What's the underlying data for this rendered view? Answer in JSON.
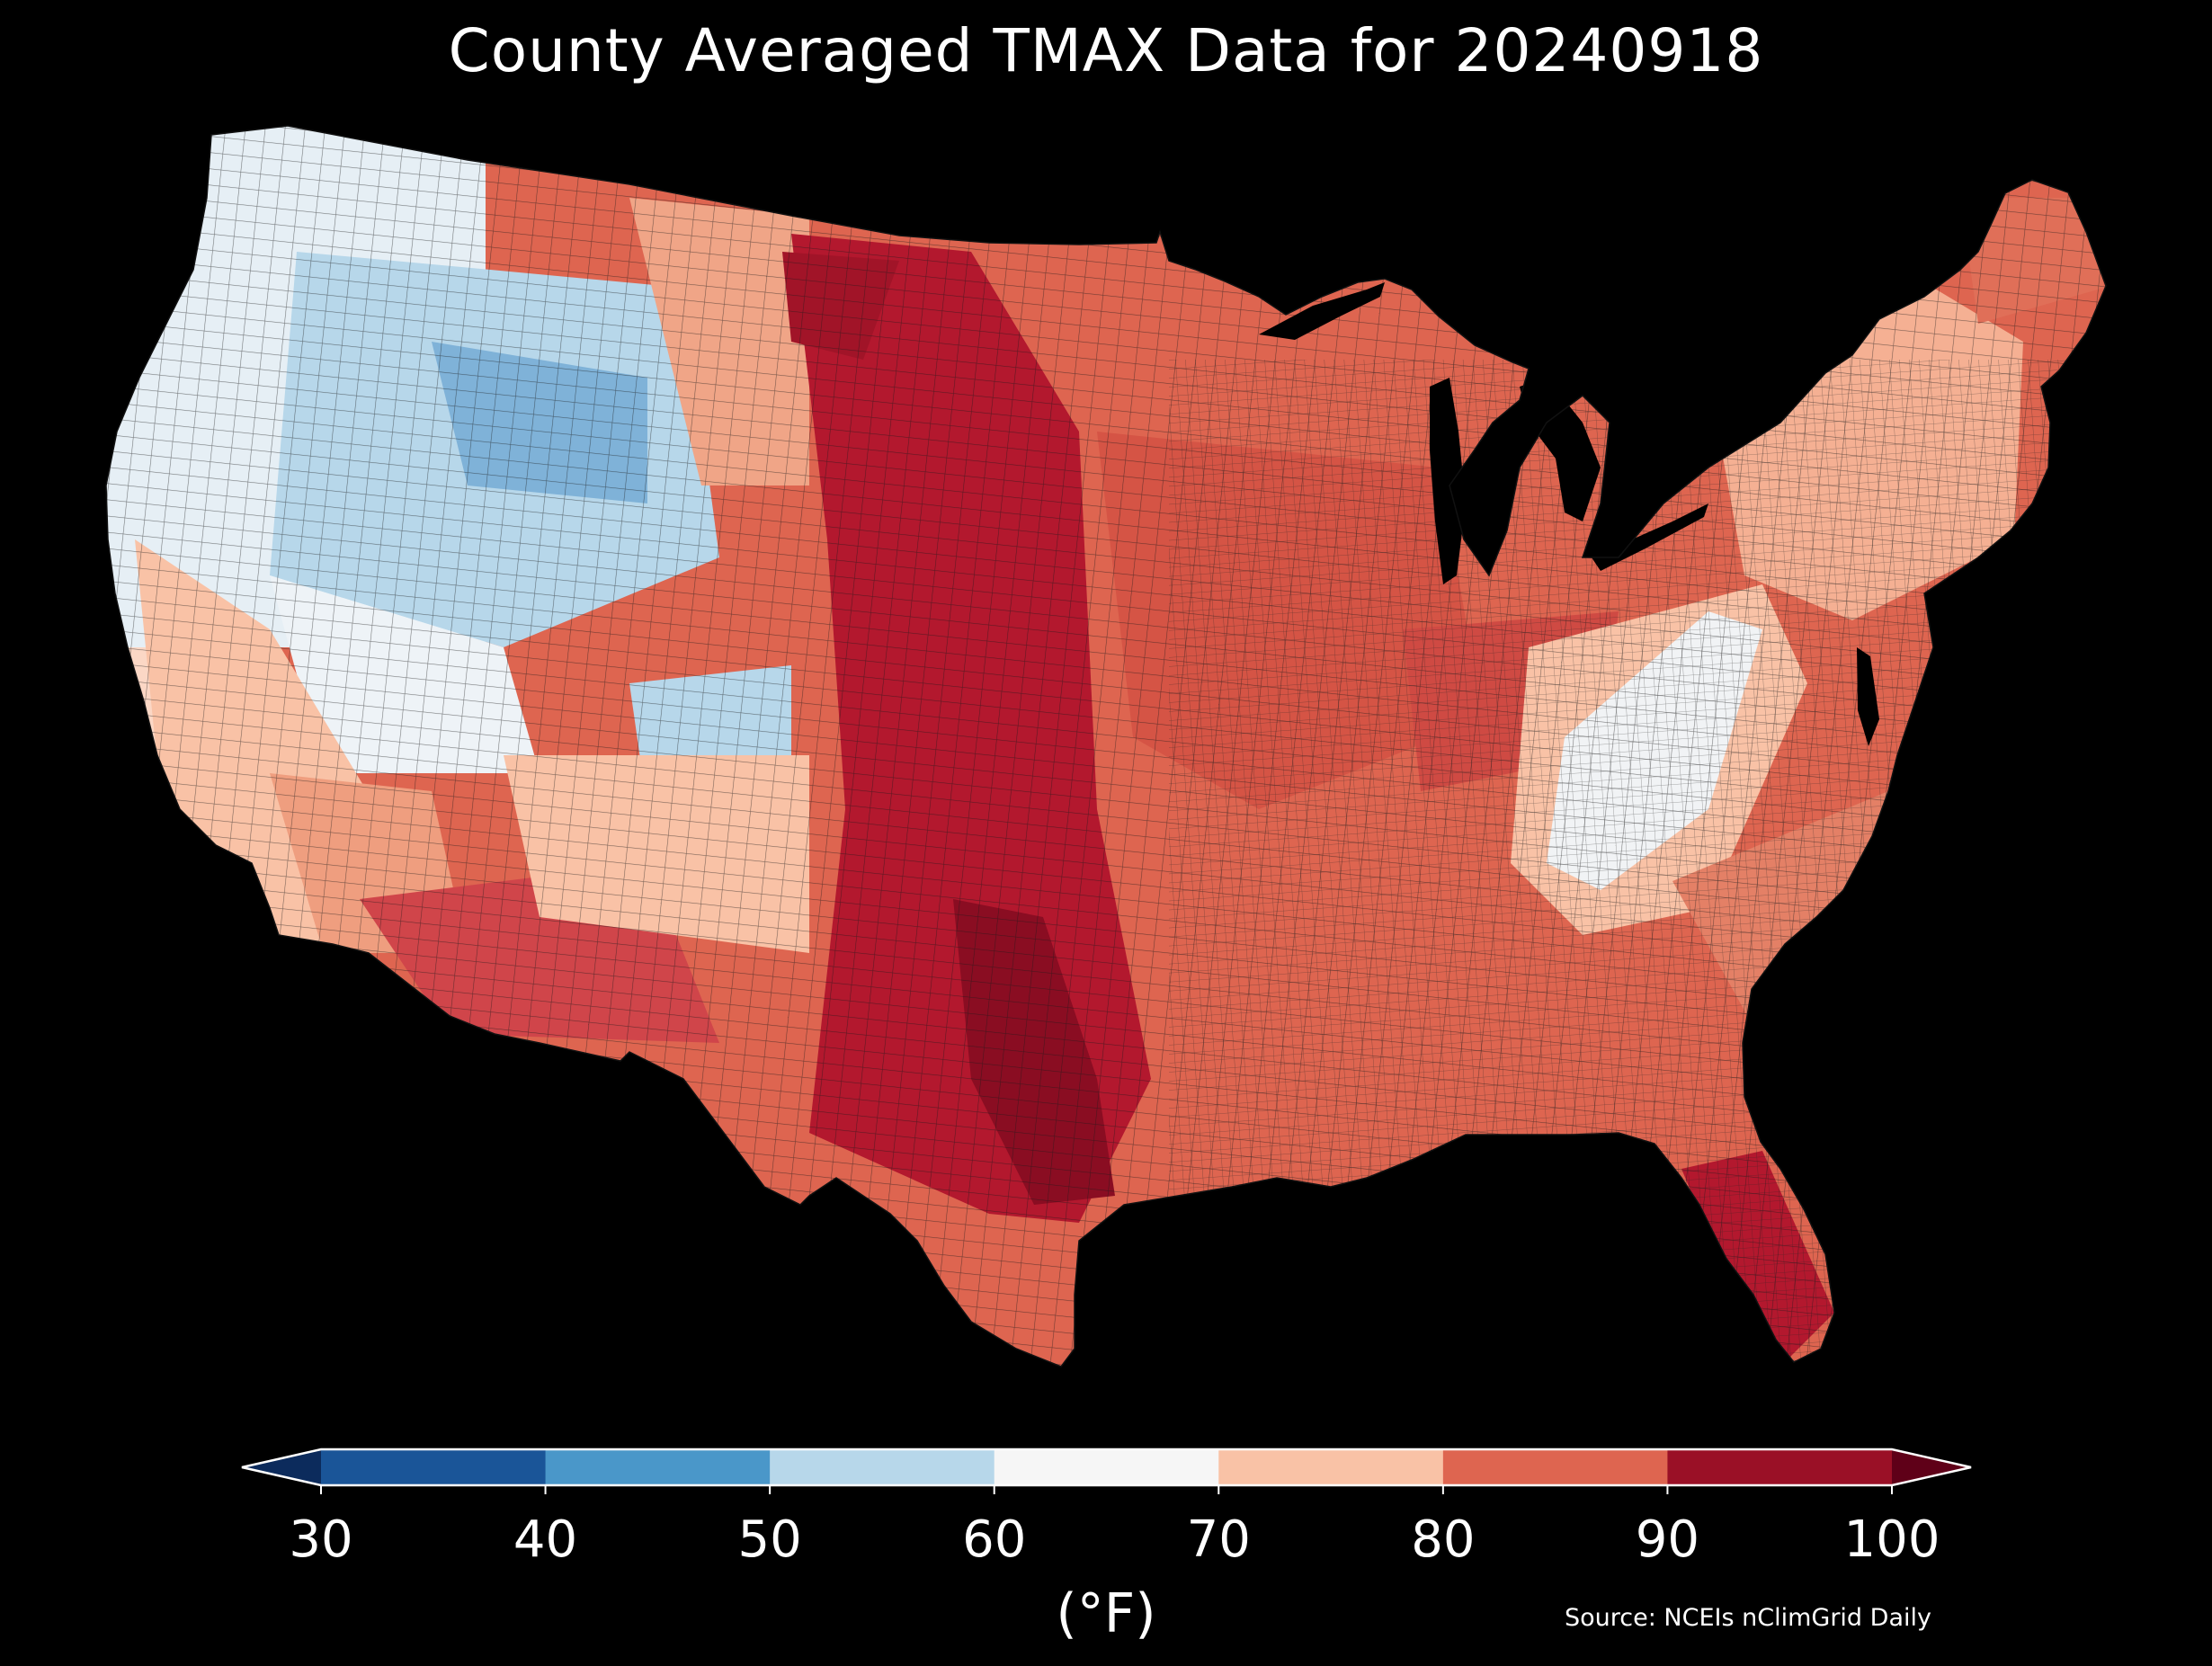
{
  "title": "County Averaged TMAX Data for 20240918",
  "source": "Source: NCEIs nClimGrid Daily",
  "colorbar": {
    "unit_label": "(°F)",
    "ticks": [
      "30",
      "40",
      "50",
      "60",
      "70",
      "80",
      "90",
      "100"
    ],
    "bins": [
      {
        "range": "30-40",
        "color": "#1a5598"
      },
      {
        "range": "40-50",
        "color": "#4a97c9"
      },
      {
        "range": "50-60",
        "color": "#b7d7ea"
      },
      {
        "range": "60-70",
        "color": "#f6f6f6"
      },
      {
        "range": "70-80",
        "color": "#f9c2a6"
      },
      {
        "range": "80-90",
        "color": "#de6550"
      },
      {
        "range": "90-100",
        "color": "#9a1026"
      }
    ],
    "under_color": "#0c2b5c",
    "over_color": "#5f0018"
  },
  "map": {
    "region": "Contiguous United States",
    "background": "#000000",
    "regional_pattern": [
      {
        "region": "Pacific Northwest coast and interior",
        "range": "60-70 / 50-60"
      },
      {
        "region": "Northern Rockies, Great Basin, Colorado Plateau",
        "range": "40-50 / 50-60"
      },
      {
        "region": "Southwest deserts (Arizona)",
        "range": "80-90"
      },
      {
        "region": "Great Plains (Dakotas to Texas)",
        "range": "90-100"
      },
      {
        "region": "Midwest and South",
        "range": "80-90"
      },
      {
        "region": "Southern Appalachians",
        "range": "60-70"
      },
      {
        "region": "Northeast",
        "range": "70-80 / 80-90"
      },
      {
        "region": "South Florida",
        "range": "90-100"
      }
    ]
  }
}
